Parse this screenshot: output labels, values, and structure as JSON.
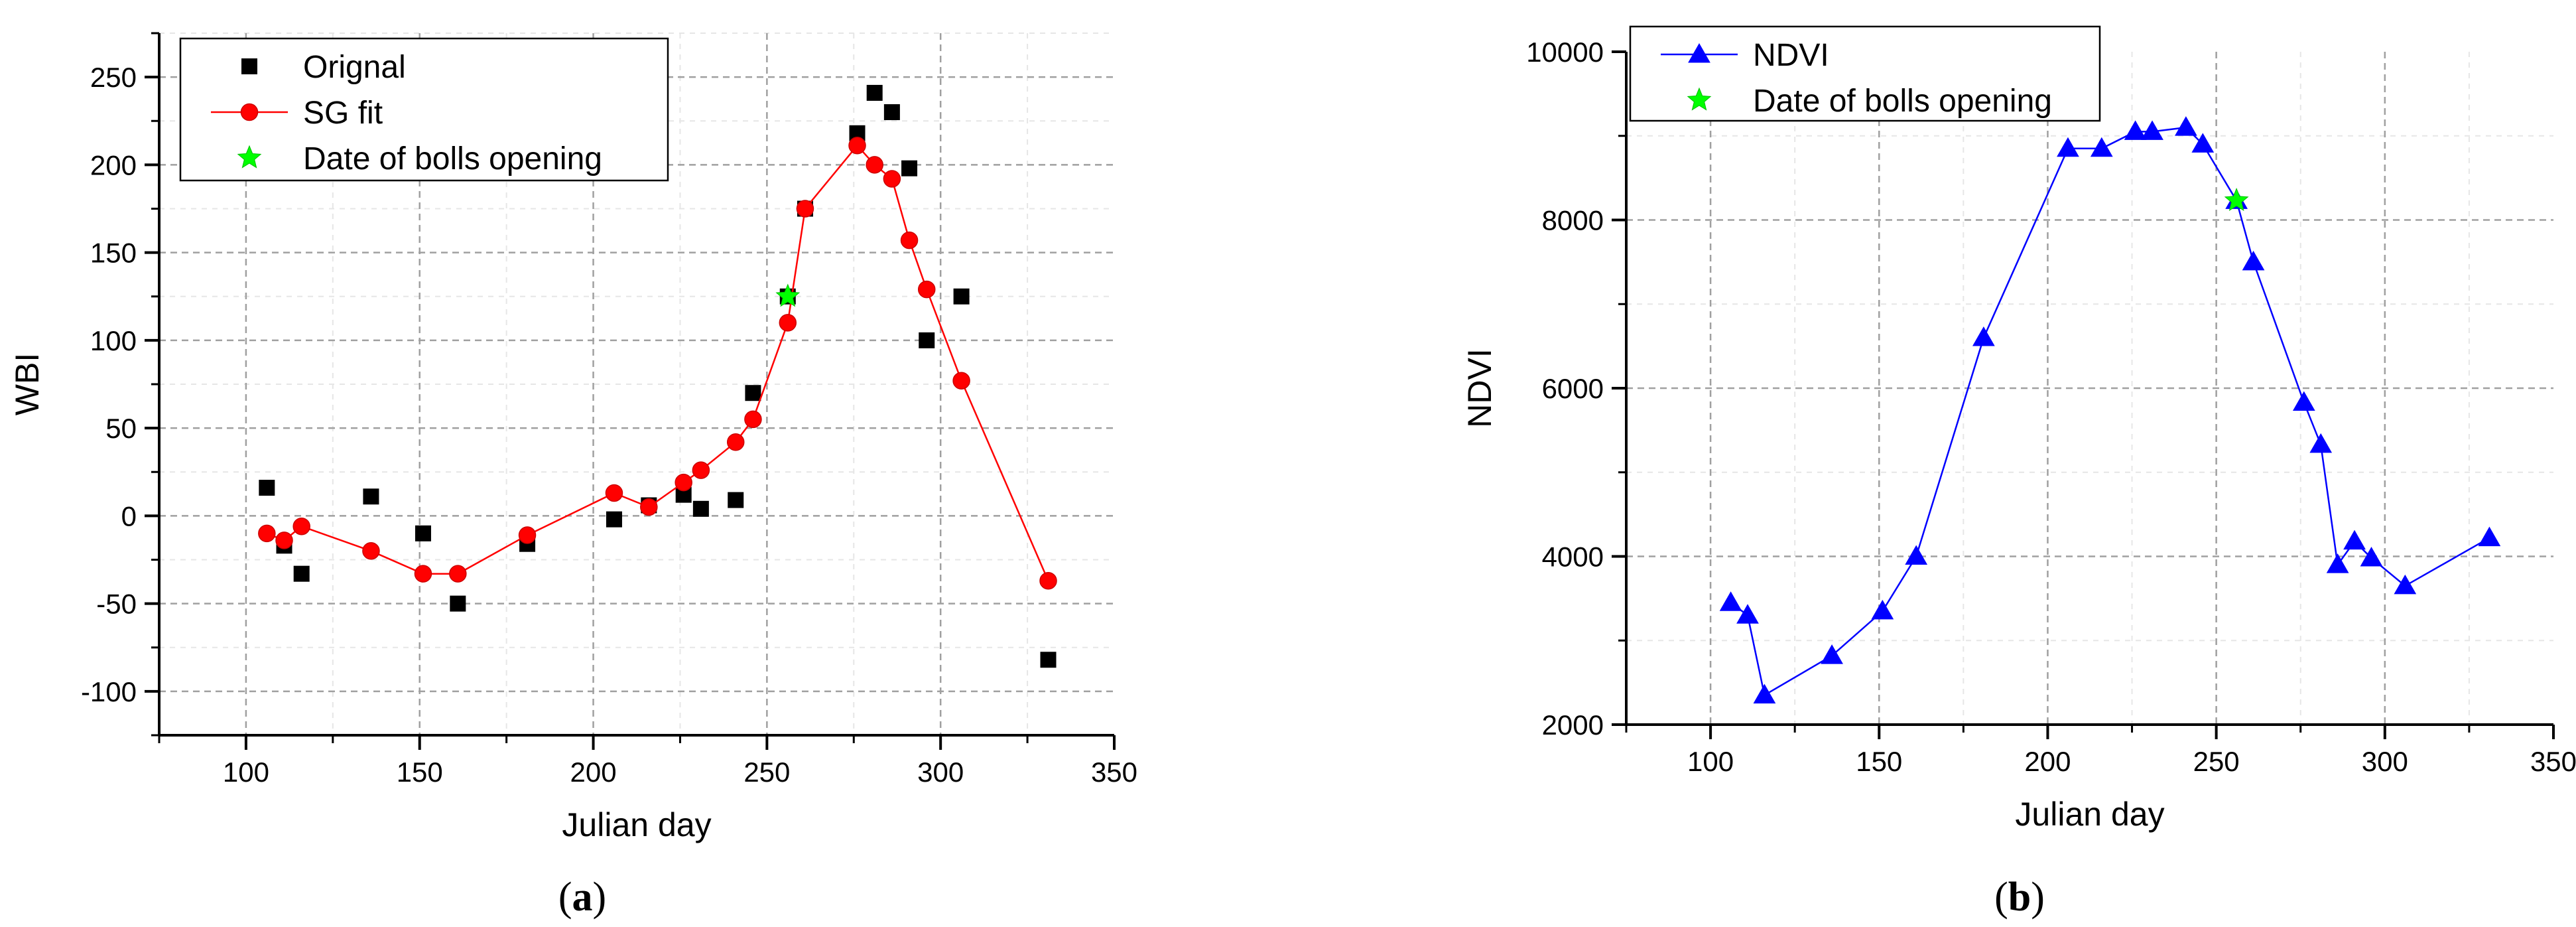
{
  "chart_data": [
    {
      "panel": "(a)",
      "type": "scatter",
      "xlabel": "Julian day",
      "ylabel": "WBI",
      "xlim": [
        75,
        350
      ],
      "ylim": [
        -125,
        275
      ],
      "xticks": [
        100,
        150,
        200,
        250,
        300,
        350
      ],
      "yticks": [
        -100,
        -50,
        0,
        50,
        100,
        150,
        200,
        250
      ],
      "grid": true,
      "legend_position": "top-left",
      "series": [
        {
          "name": "Orignal",
          "type": "scatter",
          "marker": "square",
          "color": "#000000",
          "x": [
            106,
            111,
            116,
            136,
            151,
            161,
            181,
            206,
            216,
            226,
            231,
            241,
            246,
            256,
            261,
            276,
            281,
            286,
            291,
            296,
            306,
            331
          ],
          "y": [
            16,
            -17,
            -33,
            11,
            -10,
            -50,
            -16,
            -2,
            6,
            12,
            4,
            9,
            70,
            125,
            175,
            218,
            241,
            230,
            198,
            100,
            125,
            -82
          ]
        },
        {
          "name": "SG fit",
          "type": "line",
          "marker": "circle",
          "color": "#ff0000",
          "x": [
            106,
            111,
            116,
            136,
            151,
            161,
            181,
            206,
            216,
            226,
            231,
            241,
            246,
            256,
            261,
            276,
            281,
            286,
            291,
            296,
            306,
            331
          ],
          "y": [
            -10,
            -14,
            -6,
            -20,
            -33,
            -33,
            -11,
            13,
            5,
            19,
            26,
            42,
            55,
            110,
            175,
            211,
            200,
            192,
            157,
            129,
            77,
            -37
          ]
        },
        {
          "name": "Date of bolls opening",
          "type": "scatter",
          "marker": "star",
          "color": "#00ff00",
          "x": [
            256
          ],
          "y": [
            125
          ]
        }
      ]
    },
    {
      "panel": "(b)",
      "type": "line",
      "xlabel": "Julian day",
      "ylabel": "NDVI",
      "xlim": [
        75,
        350
      ],
      "ylim": [
        2000,
        10000
      ],
      "xticks": [
        100,
        150,
        200,
        250,
        300,
        350
      ],
      "yticks": [
        2000,
        4000,
        6000,
        8000,
        10000
      ],
      "grid": true,
      "legend_position": "top-left",
      "series": [
        {
          "name": "NDVI",
          "type": "line",
          "marker": "triangle",
          "color": "#0000ff",
          "x": [
            106,
            111,
            116,
            136,
            151,
            161,
            181,
            206,
            216,
            226,
            231,
            241,
            246,
            256,
            261,
            276,
            281,
            286,
            291,
            296,
            306,
            331
          ],
          "y": [
            3450,
            3300,
            2350,
            2820,
            3350,
            4000,
            6600,
            8850,
            8850,
            9050,
            9050,
            9100,
            8900,
            8230,
            7500,
            5830,
            5330,
            3900,
            4180,
            3980,
            3650,
            4220
          ]
        },
        {
          "name": "Date of bolls opening",
          "type": "scatter",
          "marker": "star",
          "color": "#00ff00",
          "x": [
            256
          ],
          "y": [
            8230
          ]
        }
      ]
    }
  ]
}
